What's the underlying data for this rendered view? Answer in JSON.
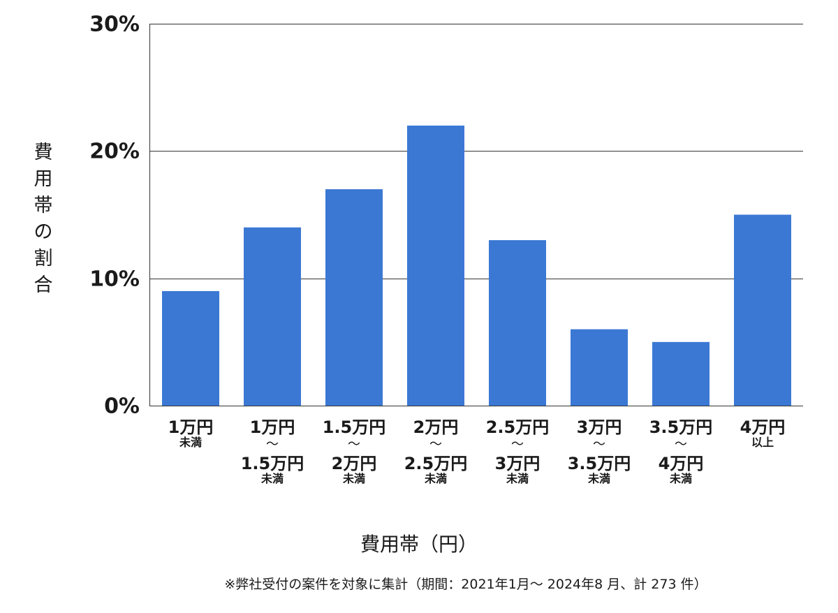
{
  "chart_data": {
    "type": "bar",
    "title": "",
    "ylabel": "費用帯の割合",
    "xlabel": "費用帯（円）",
    "note": "※弊社受付の案件を対象に集計（期間：2021年1月～ 2024年8 月、計 273 件）",
    "ylim": [
      0,
      30
    ],
    "yticks": [
      {
        "value": 0,
        "label": "0%"
      },
      {
        "value": 10,
        "label": "10%"
      },
      {
        "value": 20,
        "label": "20%"
      },
      {
        "value": 30,
        "label": "30%"
      }
    ],
    "grid": true,
    "legend": "none",
    "bar_color": "#3b78d4",
    "categories": [
      {
        "lines": [
          {
            "text": "1万円",
            "size": "big"
          },
          {
            "text": "未満",
            "size": "small"
          }
        ]
      },
      {
        "lines": [
          {
            "text": "1万円",
            "size": "big"
          },
          {
            "text": "～",
            "size": "tilde"
          },
          {
            "text": "1.5万円",
            "size": "big"
          },
          {
            "text": "未満",
            "size": "small"
          }
        ]
      },
      {
        "lines": [
          {
            "text": "1.5万円",
            "size": "big"
          },
          {
            "text": "～",
            "size": "tilde"
          },
          {
            "text": "2万円",
            "size": "big"
          },
          {
            "text": "未満",
            "size": "small"
          }
        ]
      },
      {
        "lines": [
          {
            "text": "2万円",
            "size": "big"
          },
          {
            "text": "～",
            "size": "tilde"
          },
          {
            "text": "2.5万円",
            "size": "big"
          },
          {
            "text": "未満",
            "size": "small"
          }
        ]
      },
      {
        "lines": [
          {
            "text": "2.5万円",
            "size": "big"
          },
          {
            "text": "～",
            "size": "tilde"
          },
          {
            "text": "3万円",
            "size": "big"
          },
          {
            "text": "未満",
            "size": "small"
          }
        ]
      },
      {
        "lines": [
          {
            "text": "3万円",
            "size": "big"
          },
          {
            "text": "～",
            "size": "tilde"
          },
          {
            "text": "3.5万円",
            "size": "big"
          },
          {
            "text": "未満",
            "size": "small"
          }
        ]
      },
      {
        "lines": [
          {
            "text": "3.5万円",
            "size": "big"
          },
          {
            "text": "～",
            "size": "tilde"
          },
          {
            "text": "4万円",
            "size": "big"
          },
          {
            "text": "未満",
            "size": "small"
          }
        ]
      },
      {
        "lines": [
          {
            "text": "4万円",
            "size": "big"
          },
          {
            "text": "以上",
            "size": "small"
          }
        ]
      }
    ],
    "values": [
      9,
      14,
      17,
      22,
      13,
      6,
      5,
      15
    ]
  }
}
